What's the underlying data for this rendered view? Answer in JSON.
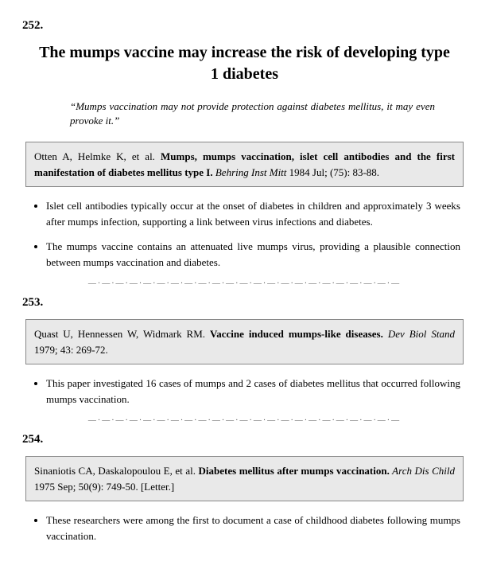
{
  "entry252": {
    "number": "252.",
    "title": "The mumps vaccine may increase the risk of developing type 1 diabetes",
    "epigraph": "“Mumps vaccination may not provide protection against diabetes mellitus, it may even provoke it.”",
    "citation_authors": "Otten A, Helmke K, et al. ",
    "citation_title": "Mumps, mumps vaccination, islet cell antibodies and the first manifestation of diabetes mellitus type I.",
    "citation_journal": " Behring Inst Mitt",
    "citation_rest": " 1984 Jul; (75): 83-88.",
    "bullet1": "Islet cell antibodies typically occur at the onset of diabetes in children and approximately 3 weeks after mumps infection, supporting a link between virus infections and diabetes.",
    "bullet2": "The mumps vaccine contains an attenuated live mumps virus, providing a plausible connection between mumps vaccination and diabetes."
  },
  "entry253": {
    "number": "253.",
    "citation_authors": "Quast U, Hennessen W, Widmark RM. ",
    "citation_title": "Vaccine induced mumps-like diseases.",
    "citation_journal": " Dev Biol Stand",
    "citation_rest": " 1979; 43: 269-72.",
    "bullet1": "This paper investigated 16 cases of mumps and 2 cases of diabetes mellitus that occurred following mumps vaccination."
  },
  "entry254": {
    "number": "254.",
    "citation_authors": "Sinaniotis CA, Daskalopoulou E, et al. ",
    "citation_title": "Diabetes mellitus after mumps vaccination.",
    "citation_journal": " Arch Dis Child",
    "citation_rest": " 1975 Sep; 50(9): 749-50. [Letter.]",
    "bullet1": "These researchers were among the first to document a case of childhood diabetes following mumps vaccination."
  },
  "divider": "—·—·—·—·—·—·—·—·—·—·—·—·—·—·—·—·—·—·—·—·—·—·—"
}
